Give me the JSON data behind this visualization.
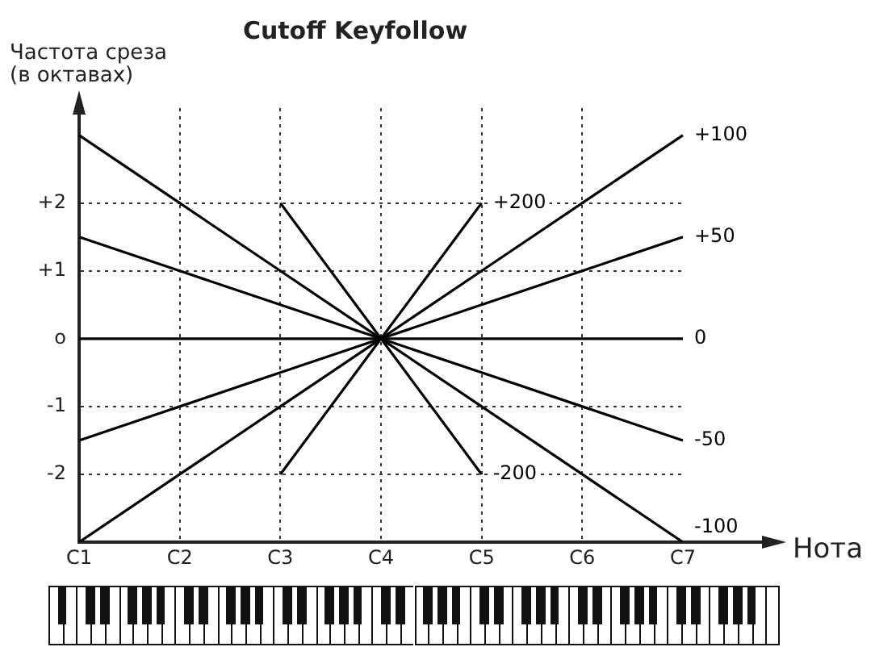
{
  "chart_data": {
    "type": "line",
    "title": "Cutoff Keyfollow",
    "xlabel": "Нота",
    "ylabel": "Частота среза\n(в октавах)",
    "categories": [
      "C1",
      "C2",
      "C3",
      "C4",
      "C5",
      "C6",
      "C7"
    ],
    "ylim": [
      -3,
      3.4
    ],
    "yticks": [
      {
        "value": 2,
        "label": "+2"
      },
      {
        "value": 1,
        "label": "+1"
      },
      {
        "value": 0,
        "label": "o"
      },
      -1,
      -2
    ],
    "grid": true,
    "legend": false,
    "marker": "none",
    "line_style": "solid",
    "series": [
      {
        "name": "+200",
        "color": "#000000",
        "values": [
          null,
          null,
          -2,
          0,
          2,
          null,
          null
        ]
      },
      {
        "name": "+100",
        "color": "#000000",
        "values": [
          -3,
          -2,
          -1,
          0,
          1,
          2,
          3
        ]
      },
      {
        "name": "+50",
        "color": "#000000",
        "values": [
          -1.5,
          -1,
          -0.5,
          0,
          0.5,
          1,
          1.5
        ]
      },
      {
        "name": "0",
        "color": "#000000",
        "values": [
          0,
          0,
          0,
          0,
          0,
          0,
          0
        ]
      },
      {
        "name": "-50",
        "color": "#000000",
        "values": [
          1.5,
          1,
          0.5,
          0,
          -0.5,
          -1,
          -1.5
        ]
      },
      {
        "name": "-100",
        "color": "#000000",
        "values": [
          3,
          2,
          1,
          0,
          -1,
          -2,
          -3
        ]
      },
      {
        "name": "-200",
        "color": "#000000",
        "values": [
          null,
          null,
          2,
          0,
          -2,
          null,
          null
        ]
      }
    ]
  }
}
